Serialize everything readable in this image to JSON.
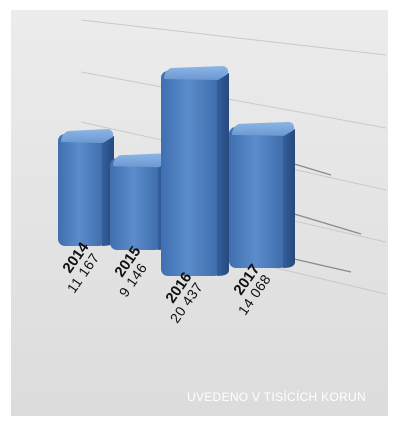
{
  "chart_data": {
    "type": "bar",
    "title": "",
    "xlabel": "",
    "ylabel": "",
    "categories": [
      "2014",
      "2015",
      "2016",
      "2017"
    ],
    "values": [
      11167,
      9146,
      20437,
      14068
    ],
    "value_labels": [
      "11 167",
      "9 146",
      "20 437",
      "14 068"
    ],
    "ylim": [
      0,
      24000
    ],
    "grid": true,
    "legend": "none"
  },
  "footnote": "UVEDENO V TISÍCÍCH KORUN",
  "colors": {
    "bar": "#4f7fbf",
    "bar_top": "#7aa6dc",
    "bar_side": "#2f5f9e",
    "background": "#e6e6e6",
    "footnote": "#ffffff"
  }
}
